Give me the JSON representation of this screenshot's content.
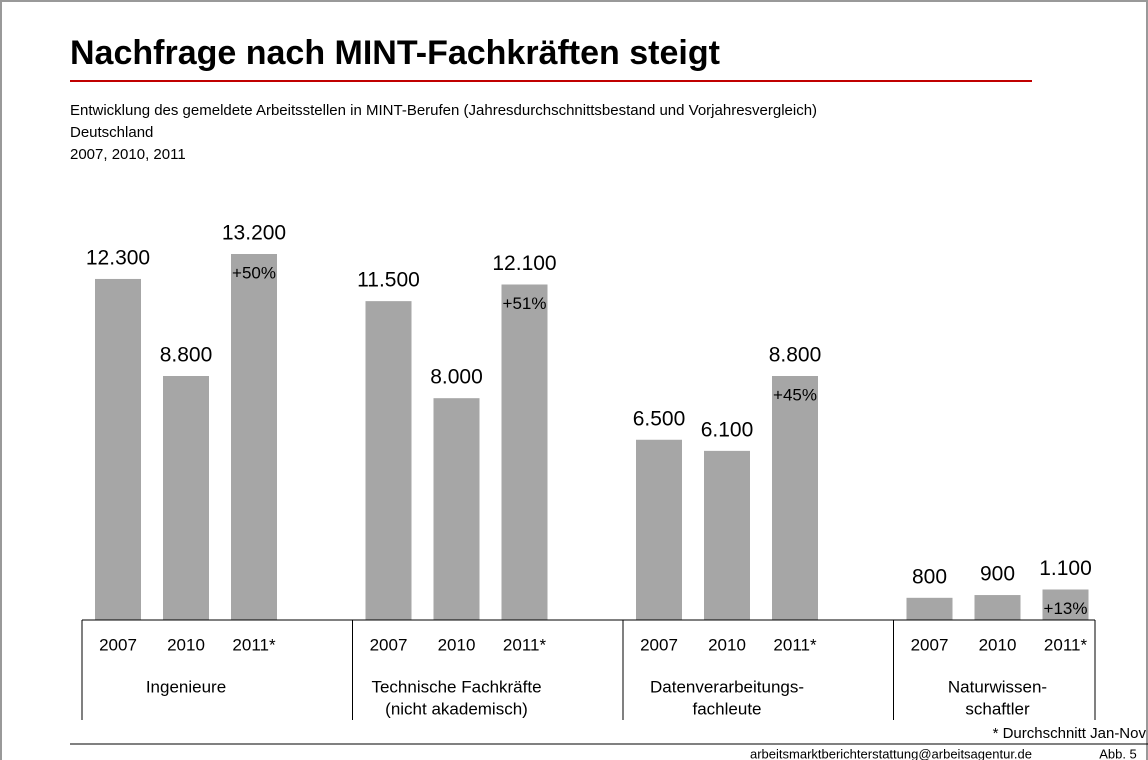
{
  "chart_data": {
    "type": "bar",
    "title": "Nachfrage nach MINT-Fachkräften steigt",
    "subtitle": [
      "Entwicklung des gemeldete Arbeitsstellen in MINT-Berufen (Jahresdurchschnittsbestand und Vorjahresvergleich)",
      "Deutschland",
      "2007, 2010, 2011"
    ],
    "categories": [
      [
        "Ingenieure"
      ],
      [
        "Technische Fachkräfte",
        "(nicht akademisch)"
      ],
      [
        "Datenverarbeitungs-",
        "fachleute"
      ],
      [
        "Naturwissen-",
        "schaftler"
      ]
    ],
    "color": "#a6a6a6",
    "series": [
      {
        "name": "2007",
        "values": [
          12300,
          11500,
          6500,
          800
        ],
        "value_labels": [
          "12.300",
          "11.500",
          "6.500",
          "800"
        ]
      },
      {
        "name": "2010",
        "values": [
          8800,
          8000,
          6100,
          900
        ],
        "value_labels": [
          "8.800",
          "8.000",
          "6.100",
          "900"
        ]
      },
      {
        "name": "2011*",
        "values": [
          13200,
          12100,
          8800,
          1100
        ],
        "value_labels": [
          "13.200",
          "12.100",
          "8.800",
          "1.100"
        ]
      }
    ],
    "changes": [
      "+50%",
      "+51%",
      "+45%",
      "+13%"
    ],
    "footnote": "* Durchschnitt Jan-Nov",
    "source": "arbeitsmarktberichterstattung@arbeitsagentur.de",
    "figure": "Abb. 5"
  }
}
